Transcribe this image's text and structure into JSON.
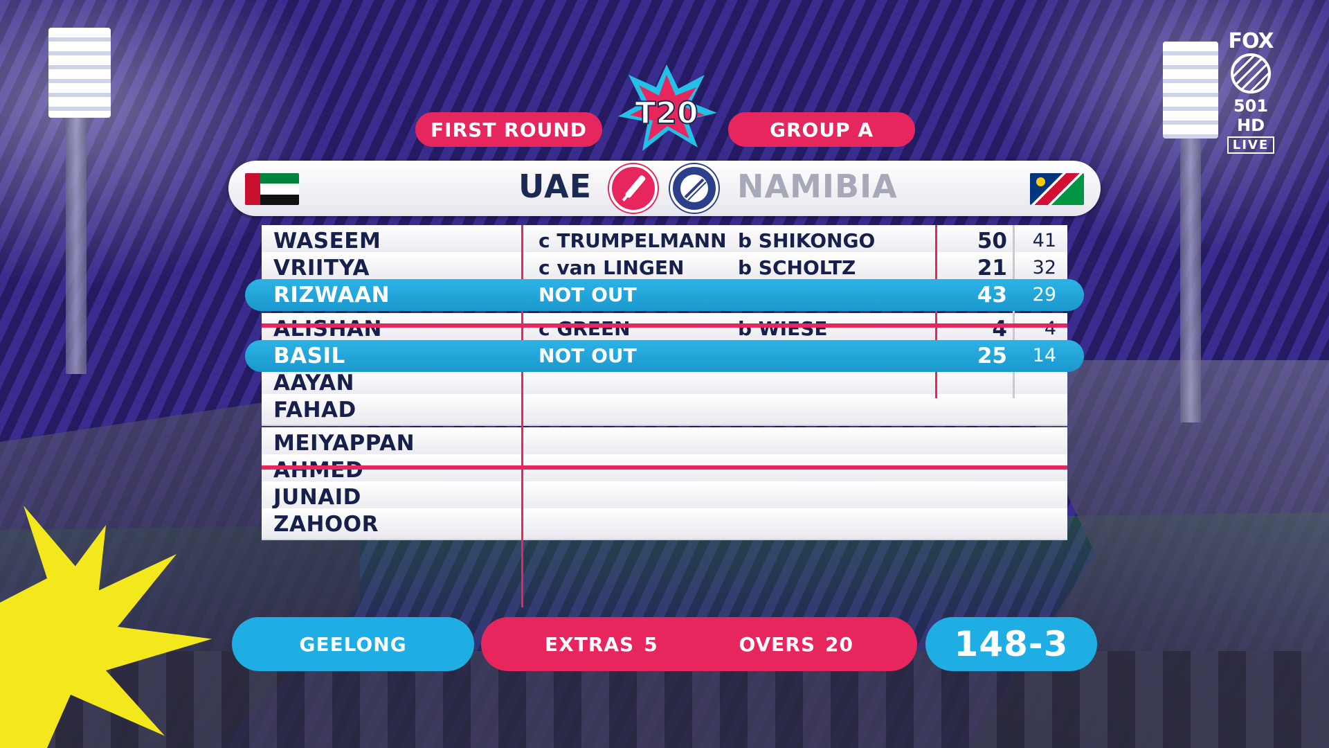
{
  "header": {
    "round": "FIRST ROUND",
    "group": "GROUP A"
  },
  "broadcaster": {
    "network": "FOX",
    "channel": "501 HD",
    "live": "LIVE"
  },
  "teams": {
    "batting": "UAE",
    "bowling": "NAMIBIA"
  },
  "colors": {
    "accent_pink": "#e8265e",
    "accent_blue": "#1faee3",
    "navy_text": "#16204a"
  },
  "scorecard": [
    {
      "name": "WASEEM",
      "catch": "c TRUMPELMANN",
      "bowler": "b SHIKONGO",
      "runs": "50",
      "balls": "41",
      "highlight": false
    },
    {
      "name": "VRIITYA",
      "catch": "c van LINGEN",
      "bowler": "b SCHOLTZ",
      "runs": "21",
      "balls": "32",
      "highlight": false
    },
    {
      "name": "RIZWAAN",
      "catch": "NOT OUT",
      "bowler": "",
      "runs": "43",
      "balls": "29",
      "highlight": true
    },
    {
      "name": "ALISHAN",
      "catch": "c GREEN",
      "bowler": "b WIESE",
      "runs": "4",
      "balls": "4",
      "highlight": false
    },
    {
      "name": "BASIL",
      "catch": "NOT OUT",
      "bowler": "",
      "runs": "25",
      "balls": "14",
      "highlight": true
    },
    {
      "name": "AAYAN",
      "catch": "",
      "bowler": "",
      "runs": "",
      "balls": "",
      "highlight": false
    },
    {
      "name": "FAHAD",
      "catch": "",
      "bowler": "",
      "runs": "",
      "balls": "",
      "highlight": false
    },
    {
      "name": "MEIYAPPAN",
      "catch": "",
      "bowler": "",
      "runs": "",
      "balls": "",
      "highlight": false
    },
    {
      "name": "AHMED",
      "catch": "",
      "bowler": "",
      "runs": "",
      "balls": "",
      "highlight": false
    },
    {
      "name": "JUNAID",
      "catch": "",
      "bowler": "",
      "runs": "",
      "balls": "",
      "highlight": false
    },
    {
      "name": "ZAHOOR",
      "catch": "",
      "bowler": "",
      "runs": "",
      "balls": "",
      "highlight": false
    }
  ],
  "footer": {
    "venue": "GEELONG",
    "extras_label": "EXTRAS",
    "extras_value": "5",
    "overs_label": "OVERS",
    "overs_value": "20",
    "total": "148-3"
  }
}
